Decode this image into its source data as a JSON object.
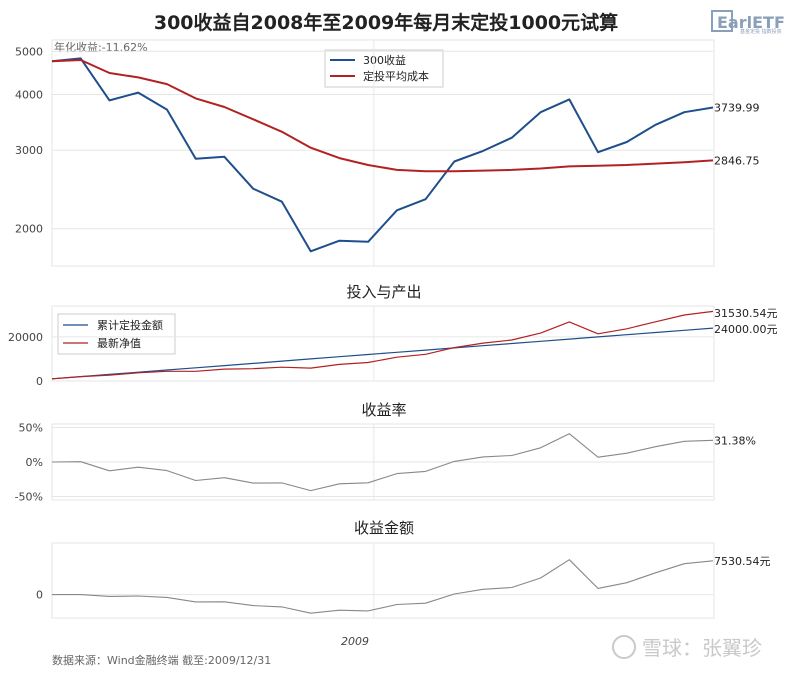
{
  "title": "300收益自2008年至2009年每月末定投1000元试算",
  "logo": {
    "text": "EarlETF",
    "sub": "基金定投 指数投资"
  },
  "source_note": "数据来源：Wind金融终端 截至:2009/12/31",
  "watermark": "雪球：张翼珍",
  "colors": {
    "index": "#1f4e8c",
    "cost": "#b22222",
    "gray": "#888888",
    "grid": "#e6e6e6"
  },
  "chart_data": [
    {
      "id": "main",
      "type": "line",
      "title": "",
      "scale": "log",
      "ylim": [
        1650,
        5300
      ],
      "yticks": [
        2000,
        3000,
        4000,
        5000
      ],
      "annotation": "年化收益:-11.62%",
      "series": [
        {
          "name": "300收益",
          "color_key": "index",
          "end_label": "3739.99",
          "values": [
            4750,
            4820,
            3880,
            4040,
            3700,
            2870,
            2900,
            2460,
            2300,
            1780,
            1880,
            1870,
            2200,
            2330,
            2830,
            2990,
            3200,
            3650,
            3900,
            2970,
            3130,
            3420,
            3650,
            3739.99
          ]
        },
        {
          "name": "定投平均成本",
          "color_key": "cost",
          "end_label": "2846.75",
          "values": [
            4750,
            4780,
            4470,
            4370,
            4220,
            3920,
            3750,
            3520,
            3300,
            3040,
            2880,
            2780,
            2710,
            2690,
            2690,
            2700,
            2710,
            2730,
            2760,
            2770,
            2780,
            2800,
            2820,
            2846.75
          ]
        }
      ]
    },
    {
      "id": "invest",
      "type": "line",
      "title": "投入与产出",
      "ylim": [
        0,
        34000
      ],
      "yticks": [
        0,
        20000
      ],
      "series": [
        {
          "name": "累计定投金额",
          "color_key": "index",
          "end_label": "24000.00元",
          "values": [
            1000,
            2000,
            3000,
            4000,
            5000,
            6000,
            7000,
            8000,
            9000,
            10000,
            11000,
            12000,
            13000,
            14000,
            15000,
            16000,
            17000,
            18000,
            19000,
            20000,
            21000,
            22000,
            23000,
            24000
          ]
        },
        {
          "name": "最新净值",
          "color_key": "cost",
          "end_label": "31530.54元",
          "values": [
            1000,
            2010,
            2620,
            3700,
            4380,
            4390,
            5410,
            5560,
            6270,
            5860,
            7530,
            8390,
            10810,
            12090,
            15140,
            17180,
            18600,
            21700,
            26780,
            21400,
            23660,
            26860,
            29900,
            31530.54
          ]
        }
      ]
    },
    {
      "id": "rate",
      "type": "line",
      "title": "收益率",
      "ylim": [
        -55,
        55
      ],
      "yticks": [
        -50,
        0,
        50
      ],
      "ytick_labels": [
        "-50%",
        "0%",
        "50%"
      ],
      "series": [
        {
          "name": "收益率",
          "color_key": "gray",
          "end_label": "31.38%",
          "values": [
            0,
            0.5,
            -12.7,
            -7.5,
            -12.4,
            -26.8,
            -22.7,
            -30.5,
            -30.3,
            -41.4,
            -31.5,
            -30.1,
            -16.8,
            -13.6,
            0.9,
            7.4,
            9.4,
            20.6,
            40.9,
            7.0,
            12.7,
            22.1,
            30.0,
            31.38
          ]
        }
      ]
    },
    {
      "id": "amount",
      "type": "line",
      "title": "收益金额",
      "ylim": [
        -5200,
        11500
      ],
      "yticks": [
        0
      ],
      "series": [
        {
          "name": "收益金额",
          "color_key": "gray",
          "end_label": "7530.54元",
          "values": [
            0,
            10,
            -380,
            -300,
            -620,
            -1610,
            -1590,
            -2440,
            -2730,
            -4140,
            -3470,
            -3610,
            -2190,
            -1910,
            140,
            1180,
            1600,
            3700,
            7780,
            1400,
            2660,
            4860,
            6900,
            7530.54
          ]
        }
      ]
    }
  ],
  "x_axis": {
    "label": "2009",
    "label_index": 11.2
  }
}
